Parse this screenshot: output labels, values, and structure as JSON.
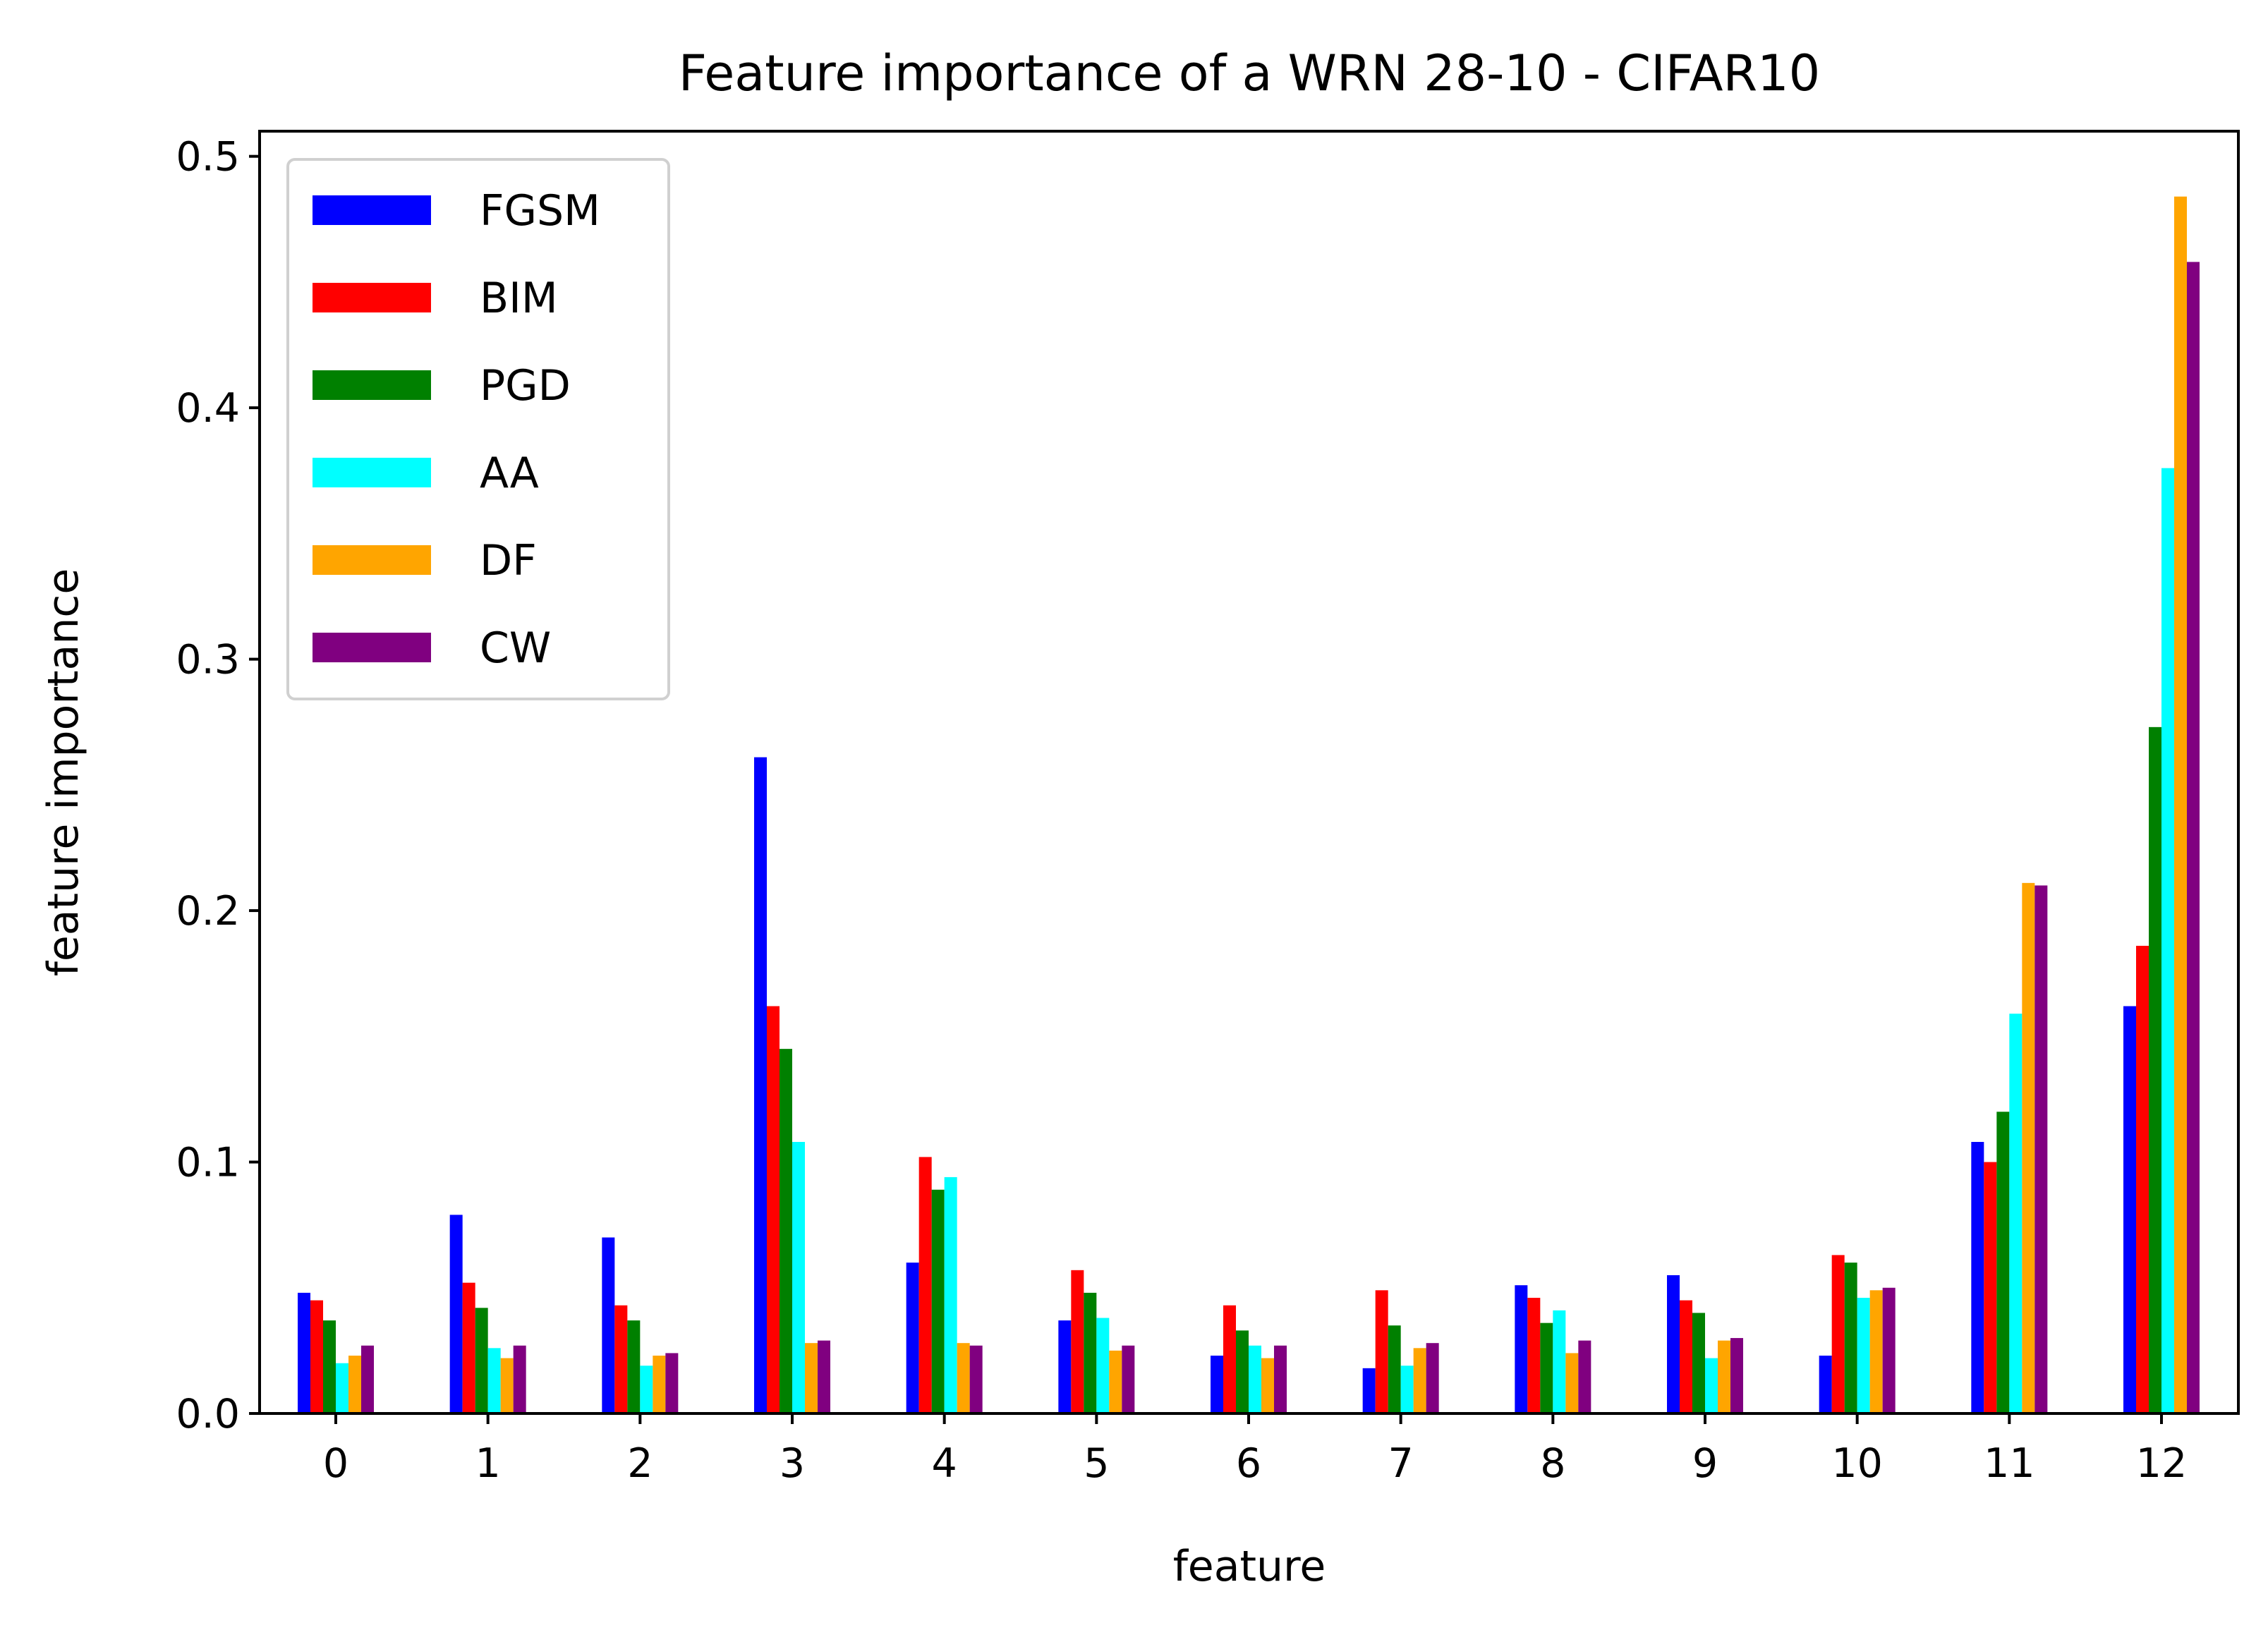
{
  "chart_data": {
    "type": "bar",
    "title": "Feature importance of a WRN 28-10 - CIFAR10",
    "xlabel": "feature",
    "ylabel": "feature importance",
    "categories": [
      "0",
      "1",
      "2",
      "3",
      "4",
      "5",
      "6",
      "7",
      "8",
      "9",
      "10",
      "11",
      "12"
    ],
    "ylim": [
      0,
      0.51
    ],
    "yticks": [
      "0.0",
      "0.1",
      "0.2",
      "0.3",
      "0.4",
      "0.5"
    ],
    "grid": false,
    "legend_position": "top-left",
    "series": [
      {
        "name": "FGSM",
        "color": "#0000ff",
        "values": [
          0.048,
          0.079,
          0.07,
          0.261,
          0.06,
          0.037,
          0.023,
          0.018,
          0.051,
          0.055,
          0.023,
          0.108,
          0.162
        ]
      },
      {
        "name": "BIM",
        "color": "#ff0000",
        "values": [
          0.045,
          0.052,
          0.043,
          0.162,
          0.102,
          0.057,
          0.043,
          0.049,
          0.046,
          0.045,
          0.063,
          0.1,
          0.186
        ]
      },
      {
        "name": "PGD",
        "color": "#008000",
        "values": [
          0.037,
          0.042,
          0.037,
          0.145,
          0.089,
          0.048,
          0.033,
          0.035,
          0.036,
          0.04,
          0.06,
          0.12,
          0.273
        ]
      },
      {
        "name": "AA",
        "color": "#00ffff",
        "values": [
          0.02,
          0.026,
          0.019,
          0.108,
          0.094,
          0.038,
          0.027,
          0.019,
          0.041,
          0.022,
          0.046,
          0.159,
          0.376
        ]
      },
      {
        "name": "DF",
        "color": "#ffa500",
        "values": [
          0.023,
          0.022,
          0.023,
          0.028,
          0.028,
          0.025,
          0.022,
          0.026,
          0.024,
          0.029,
          0.049,
          0.211,
          0.484
        ]
      },
      {
        "name": "CW",
        "color": "#800080",
        "values": [
          0.027,
          0.027,
          0.024,
          0.029,
          0.027,
          0.027,
          0.027,
          0.028,
          0.029,
          0.03,
          0.05,
          0.21,
          0.458
        ]
      }
    ]
  }
}
